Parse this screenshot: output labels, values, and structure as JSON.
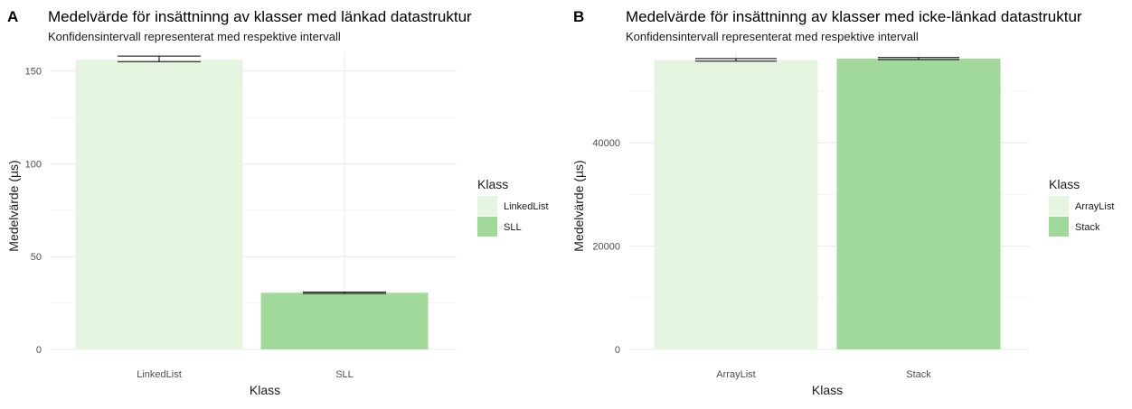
{
  "chart_data": [
    {
      "panel": "A",
      "type": "bar",
      "title": "Medelvärde för insättninng av klasser med länkad datastruktur",
      "subtitle": "Konfidensintervall representerat med respektive intervall",
      "xlabel": "Klass",
      "ylabel": "Medelvärde (µs)",
      "categories": [
        "LinkedList",
        "SLL"
      ],
      "values": [
        156,
        30.5
      ],
      "error_low": [
        155,
        30.1
      ],
      "error_high": [
        158,
        30.9
      ],
      "colors": [
        "#e5f5e0",
        "#a1d99b"
      ],
      "ylim": [
        0,
        160
      ],
      "yticks": [
        0,
        50,
        100,
        150
      ],
      "ytick_labels": [
        "0",
        "50",
        "100",
        "150"
      ],
      "legend_title": "Klass",
      "legend": [
        "LinkedList",
        "SLL"
      ],
      "legend_position": "right"
    },
    {
      "panel": "B",
      "type": "bar",
      "title": "Medelvärde för insättninng av klasser med icke-länkad datastruktur",
      "subtitle": "Konfidensintervall representerat med respektive intervall",
      "xlabel": "Klass",
      "ylabel": "Medelvärde (µs)",
      "categories": [
        "ArrayList",
        "Stack"
      ],
      "values": [
        56000,
        56300
      ],
      "error_low": [
        55800,
        56100
      ],
      "error_high": [
        56300,
        56500
      ],
      "colors": [
        "#e5f5e0",
        "#a1d99b"
      ],
      "ylim": [
        0,
        57500
      ],
      "yticks": [
        0,
        20000,
        40000
      ],
      "ytick_labels": [
        "0",
        "20000",
        "40000"
      ],
      "legend_title": "Klass",
      "legend": [
        "ArrayList",
        "Stack"
      ],
      "legend_position": "right"
    }
  ]
}
